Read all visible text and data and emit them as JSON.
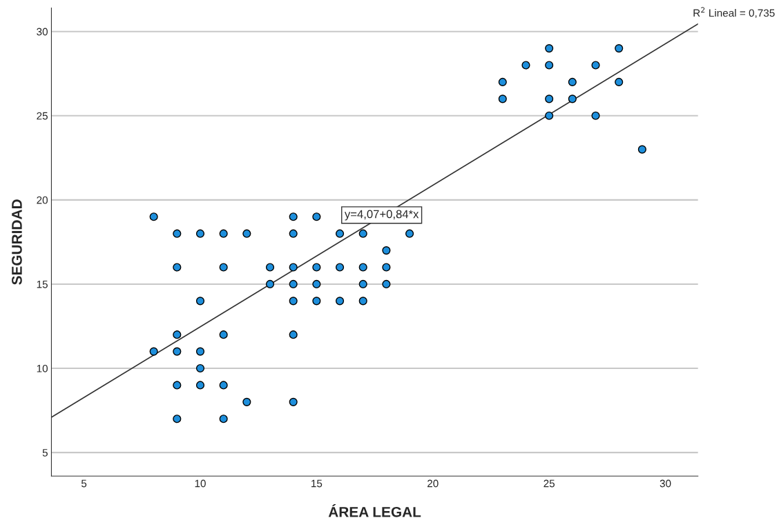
{
  "chart_data": {
    "type": "scatter",
    "xlabel": "ÁREA LEGAL",
    "ylabel": "SEGURIDAD",
    "xlim": [
      3.6,
      31.4
    ],
    "ylim": [
      3.6,
      31.4
    ],
    "xticks": [
      5,
      10,
      15,
      20,
      25,
      30
    ],
    "yticks": [
      5,
      10,
      15,
      20,
      25,
      30
    ],
    "grid": "y",
    "series": [
      {
        "color": "#1e8fdc",
        "marker": "circle",
        "x": [
          8,
          8,
          9,
          9,
          9,
          9,
          9,
          9,
          10,
          10,
          10,
          10,
          10,
          11,
          11,
          11,
          11,
          11,
          12,
          12,
          13,
          13,
          14,
          14,
          14,
          14,
          14,
          14,
          14,
          15,
          15,
          15,
          15,
          16,
          16,
          16,
          17,
          17,
          17,
          17,
          18,
          18,
          18,
          19,
          23,
          23,
          24,
          25,
          25,
          25,
          25,
          26,
          26,
          27,
          27,
          28,
          28,
          29
        ],
        "values": [
          19,
          11,
          18,
          16,
          12,
          11,
          9,
          7,
          18,
          14,
          11,
          10,
          9,
          18,
          16,
          12,
          9,
          7,
          18,
          8,
          16,
          15,
          19,
          18,
          16,
          15,
          14,
          12,
          8,
          19,
          16,
          15,
          14,
          18,
          16,
          14,
          18,
          16,
          15,
          14,
          17,
          16,
          15,
          18,
          27,
          26,
          28,
          29,
          28,
          26,
          25,
          27,
          26,
          28,
          25,
          29,
          27,
          23
        ]
      },
      {
        "type": "line",
        "color": "#333333",
        "x": [
          3.6,
          31.4
        ],
        "values": [
          7.09,
          30.45
        ],
        "line_style": "solid",
        "marker": "none"
      }
    ],
    "annotations": [
      "R$^{2}$ Lineal = 0,735",
      {
        "text": "y=4,07+0,84*x",
        "x": 17.8,
        "y": 19.1
      }
    ]
  }
}
